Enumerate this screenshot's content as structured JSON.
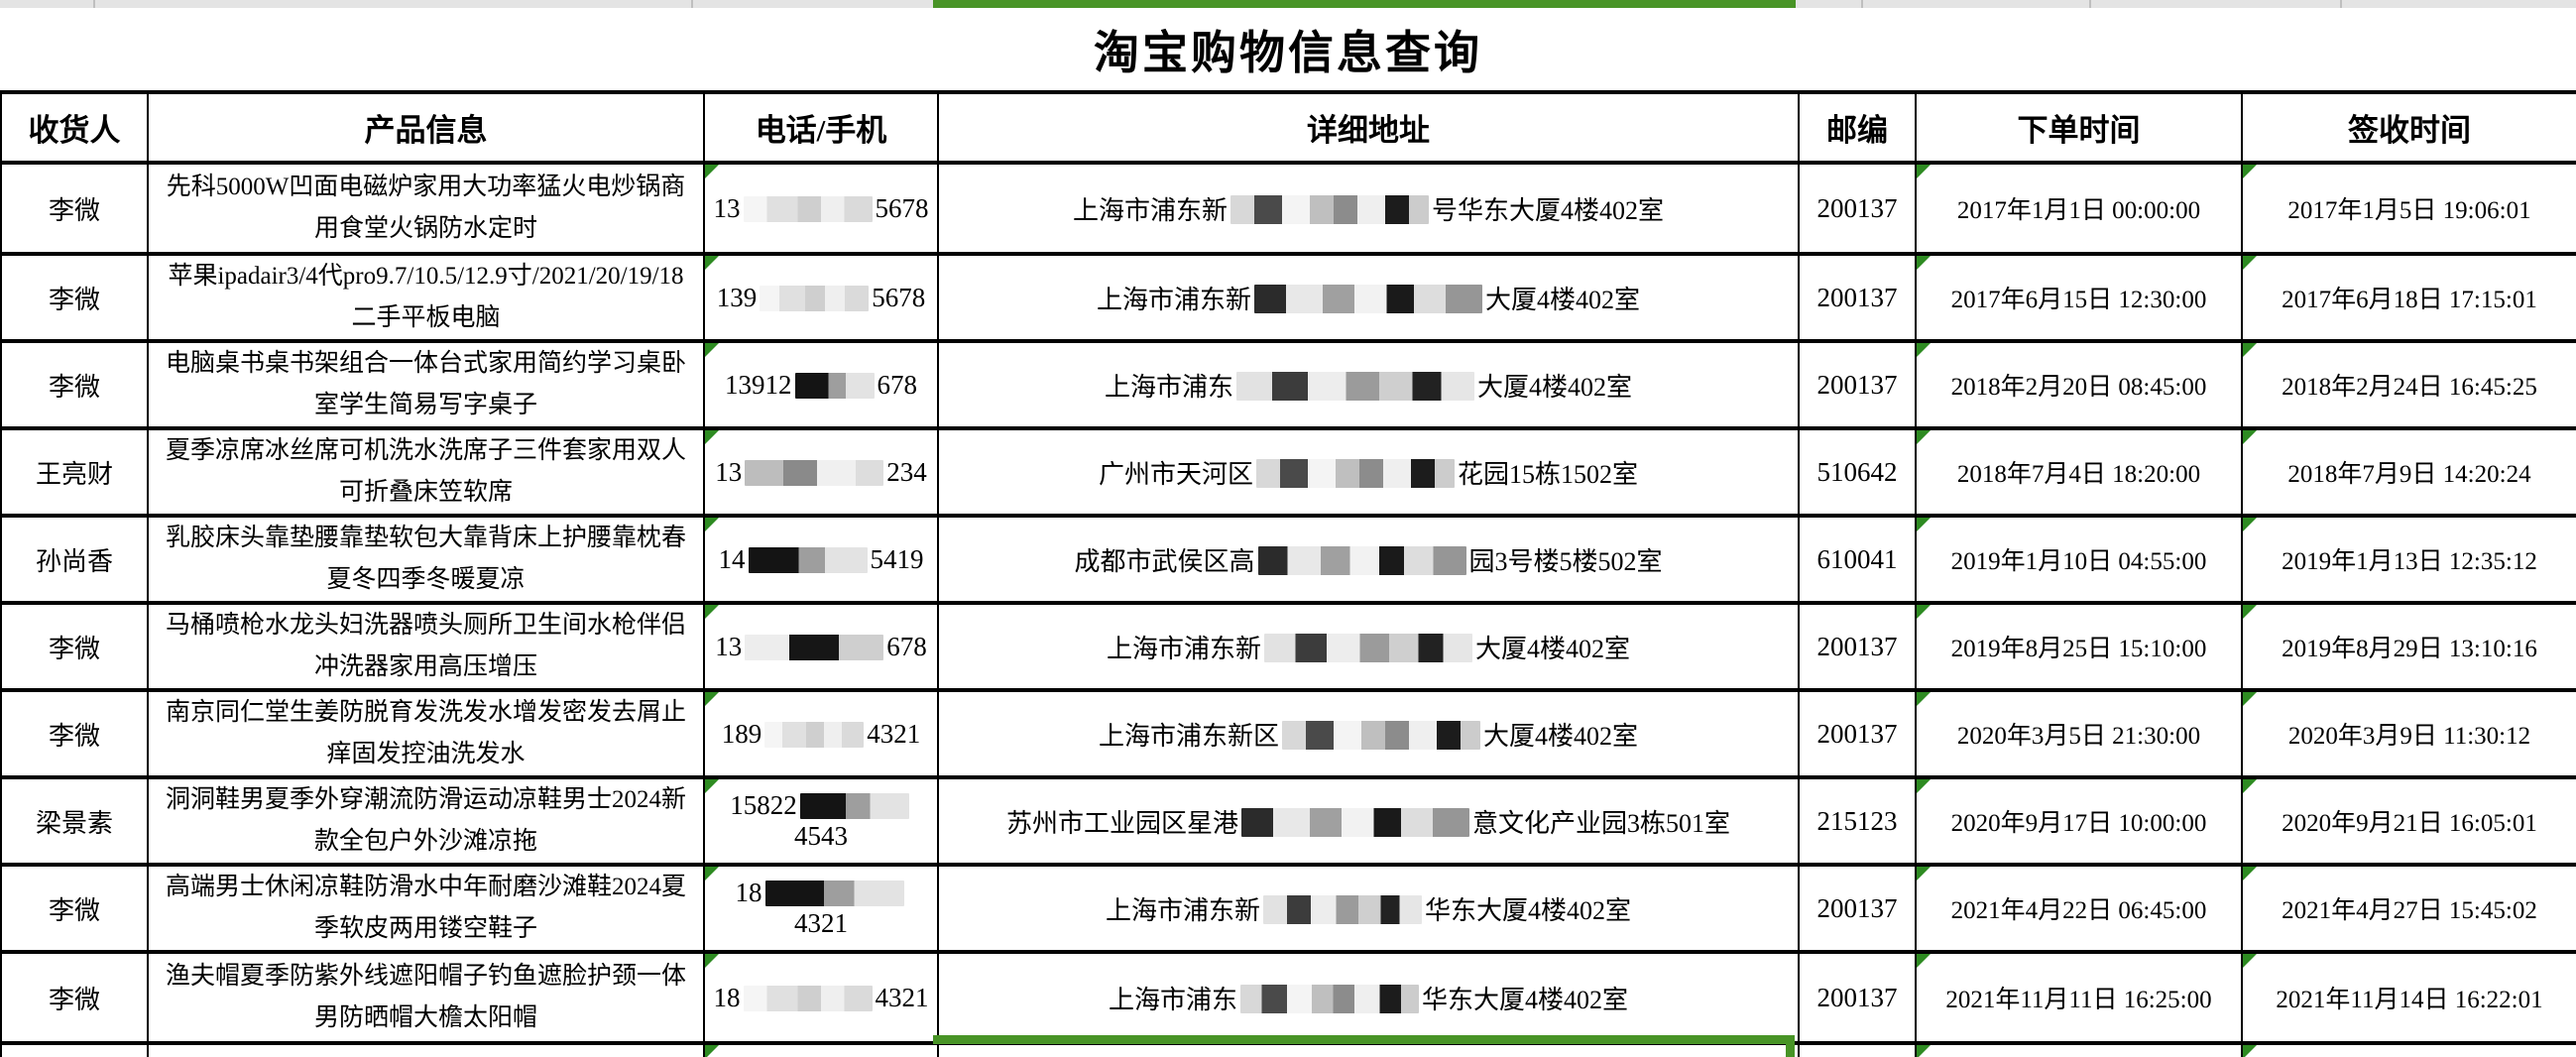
{
  "title": "淘宝购物信息查询",
  "colors": {
    "selection_green": "#489426",
    "error_indicator_green": "#2e8b22",
    "strip_gray": "#e4e4e4",
    "border_black": "#000000"
  },
  "table": {
    "headers": [
      "收货人",
      "产品信息",
      "电话/手机",
      "详细地址",
      "邮编",
      "下单时间",
      "签收时间"
    ],
    "rows": [
      {
        "recipient": "李微",
        "product": "先科5000W凹面电磁炉家用大功率猛火电炒锅商用食堂火锅防水定时",
        "phone": {
          "prefix": "13",
          "suffix": "5678",
          "redaction": "redact ph light w130"
        },
        "address": {
          "prefix": "上海市浦东新",
          "suffix": "号华东大厦4楼402室",
          "redaction": "redact ad mixA w200"
        },
        "postcode": "200137",
        "order_time": "2017年1月1日 00:00:00",
        "sign_time": "2017年1月5日 19:06:01"
      },
      {
        "recipient": "李微",
        "product": "苹果ipadair3/4代pro9.7/10.5/12.9寸/2021/20/19/18二手平板电脑",
        "phone": {
          "prefix": "139",
          "suffix": "5678",
          "redaction": "redact ph light w110"
        },
        "address": {
          "prefix": "上海市浦东新",
          "suffix": "大厦4楼402室",
          "redaction": "redact ad mixB w230"
        },
        "postcode": "200137",
        "order_time": "2017年6月15日 12:30:00",
        "sign_time": "2017年6月18日 17:15:01"
      },
      {
        "recipient": "李微",
        "product": "电脑桌书桌书架组合一体台式家用简约学习桌卧室学生简易写字桌子",
        "phone": {
          "prefix": "13912",
          "suffix": "678",
          "redaction": "redact ph dark w80"
        },
        "address": {
          "prefix": "上海市浦东",
          "suffix": "大厦4楼402室",
          "redaction": "redact ad mixC w240"
        },
        "postcode": "200137",
        "order_time": "2018年2月20日 08:45:00",
        "sign_time": "2018年2月24日 16:45:25"
      },
      {
        "recipient": "王亮财",
        "product": "夏季凉席冰丝席可机洗水洗席子三件套家用双人可折叠床笠软席",
        "phone": {
          "prefix": "13",
          "suffix": "234",
          "redaction": "redact ph mid w140"
        },
        "address": {
          "prefix": "广州市天河区",
          "suffix": "花园15栋1502室",
          "redaction": "redact ad mixA w200"
        },
        "postcode": "510642",
        "order_time": "2018年7月4日 18:20:00",
        "sign_time": "2018年7月9日 14:20:24"
      },
      {
        "recipient": "孙尚香",
        "product": "乳胶床头靠垫腰靠垫软包大靠背床上护腰靠枕春夏冬四季冬暖夏凉",
        "phone": {
          "prefix": "14",
          "suffix": "5419",
          "redaction": "redact ph dark w120"
        },
        "address": {
          "prefix": "成都市武侯区高",
          "suffix": "园3号楼5楼502室",
          "redaction": "redact ad mixB w210"
        },
        "postcode": "610041",
        "order_time": "2019年1月10日 04:55:00",
        "sign_time": "2019年1月13日 12:35:12"
      },
      {
        "recipient": "李微",
        "product": "马桶喷枪水龙头妇洗器喷头厕所卫生间水枪伴侣冲洗器家用高压增压",
        "phone": {
          "prefix": "13",
          "suffix": "678",
          "redaction": "redact ph ghost w140"
        },
        "address": {
          "prefix": "上海市浦东新",
          "suffix": "大厦4楼402室",
          "redaction": "redact ad mixC w210"
        },
        "postcode": "200137",
        "order_time": "2019年8月25日 15:10:00",
        "sign_time": "2019年8月29日 13:10:16"
      },
      {
        "recipient": "李微",
        "product": "南京同仁堂生姜防脱育发洗发水增发密发去屑止痒固发控油洗发水",
        "phone": {
          "prefix": "189",
          "suffix": "4321",
          "redaction": "redact ph light w100"
        },
        "address": {
          "prefix": "上海市浦东新区",
          "suffix": "大厦4楼402室",
          "redaction": "redact ad mixA w200"
        },
        "postcode": "200137",
        "order_time": "2020年3月5日 21:30:00",
        "sign_time": "2020年3月9日 11:30:12"
      },
      {
        "recipient": "梁景素",
        "product": "洞洞鞋男夏季外穿潮流防滑运动凉鞋男士2024新款全包户外沙滩凉拖",
        "phone": {
          "prefix": "15822",
          "suffix": "4543",
          "redaction": "redact ph dark w110"
        },
        "address": {
          "prefix": "苏州市工业园区星港",
          "suffix": "意文化产业园3栋501室",
          "redaction": "redact ad mixB w230"
        },
        "postcode": "215123",
        "order_time": "2020年9月17日 10:00:00",
        "sign_time": "2020年9月21日 16:05:01"
      },
      {
        "recipient": "李微",
        "product": "高端男士休闲凉鞋防滑水中年耐磨沙滩鞋2024夏季软皮两用镂空鞋子",
        "phone": {
          "prefix": "18",
          "suffix": "4321",
          "redaction": "redact ph dark w140"
        },
        "address": {
          "prefix": "上海市浦东新",
          "suffix": "华东大厦4楼402室",
          "redaction": "redact ad mixC w160"
        },
        "postcode": "200137",
        "order_time": "2021年4月22日 06:45:00",
        "sign_time": "2021年4月27日 15:45:02"
      },
      {
        "recipient": "李微",
        "product": "渔夫帽夏季防紫外线遮阳帽子钓鱼遮脸护颈一体男防晒帽大檐太阳帽",
        "phone": {
          "prefix": "18",
          "suffix": "4321",
          "redaction": "redact ph light w130"
        },
        "address": {
          "prefix": "上海市浦东",
          "suffix": "华东大厦4楼402室",
          "redaction": "redact ad mixA w180"
        },
        "postcode": "200137",
        "order_time": "2021年11月11日 16:25:00",
        "sign_time": "2021年11月14日 16:22:01"
      }
    ]
  }
}
